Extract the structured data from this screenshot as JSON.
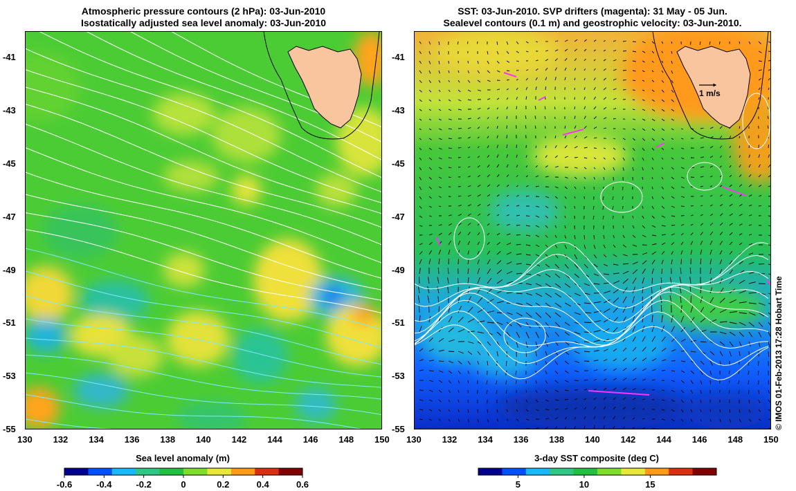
{
  "left_panel": {
    "title_line1": "Atmospheric pressure contours (2 hPa): 03-Jun-2010",
    "title_line2": "Isostatically adjusted sea level anomaly: 03-Jun-2010",
    "colorbar_title": "Sea level anomaly (m)",
    "colorbar_ticks": [
      "-0.6",
      "-0.4",
      "-0.2",
      "0",
      "0.2",
      "0.4",
      "0.6"
    ],
    "colorbar_range": [
      -0.6,
      0.6
    ]
  },
  "right_panel": {
    "title_line1": "SST: 03-Jun-2010. SVP drifters (magenta): 31 May - 05 Jun.",
    "title_line2": "Sealevel contours (0.1 m) and geostrophic velocity: 03-Jun-2010.",
    "colorbar_title": "3-day SST composite (deg C)",
    "colorbar_ticks": [
      "5",
      "10",
      "15"
    ],
    "colorbar_range": [
      2,
      20
    ],
    "velocity_scale_label": "1 m/s"
  },
  "axes": {
    "x_ticks": [
      "130",
      "132",
      "134",
      "136",
      "138",
      "140",
      "142",
      "144",
      "146",
      "148",
      "150"
    ],
    "y_ticks": [
      "-41",
      "-43",
      "-45",
      "-47",
      "-49",
      "-51",
      "-53",
      "-55"
    ],
    "lon_range": [
      130,
      150
    ],
    "lat_range": [
      -55,
      -40
    ]
  },
  "credit": "© IMOS 01-Feb-2013 17:28 Hobart Time",
  "colors": {
    "land": "#f8c59e",
    "contour": "#ffffff",
    "drifter": "#ff33ff",
    "sla_colormap": [
      "#00008f",
      "#0050ff",
      "#18b8ff",
      "#2ec884",
      "#22c040",
      "#7edc2a",
      "#e8e83a",
      "#ff9a1a",
      "#d83010",
      "#800000"
    ],
    "sst_colormap": [
      "#00008f",
      "#0050ff",
      "#18b8ff",
      "#2ec884",
      "#22c040",
      "#7edc2a",
      "#e8e83a",
      "#ff9a1a",
      "#d83010",
      "#800000"
    ]
  }
}
